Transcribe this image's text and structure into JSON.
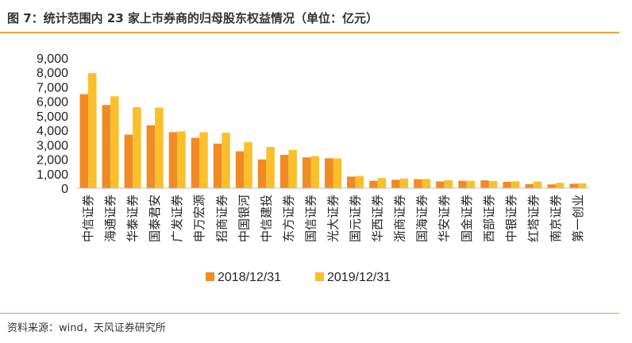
{
  "header": {
    "title": "图 7：统计范围内 23 家上市券商的归母股东权益情况（单位：亿元）"
  },
  "footer": {
    "source": "资料来源：wind，天风证券研究所"
  },
  "chart_data": {
    "type": "bar",
    "title": "图 7：统计范围内 23 家上市券商的归母股东权益情况（单位：亿元）",
    "xlabel": "",
    "ylabel": "",
    "ylim": [
      0,
      9000
    ],
    "yticks": [
      0,
      1000,
      2000,
      3000,
      4000,
      5000,
      6000,
      7000,
      8000,
      9000
    ],
    "ytick_labels": [
      "0",
      "1,000",
      "2,000",
      "3,000",
      "4,000",
      "5,000",
      "6,000",
      "7,000",
      "8,000",
      "9,000"
    ],
    "grid": false,
    "legend_position": "bottom",
    "categories": [
      "中信证券",
      "海通证券",
      "华泰证券",
      "国泰君安",
      "广发证券",
      "申万宏源",
      "招商证券",
      "中国银河",
      "中信建投",
      "东方证券",
      "国信证券",
      "光大证券",
      "国元证券",
      "华西证券",
      "浙商证券",
      "国海证券",
      "华安证券",
      "国金证券",
      "西部证券",
      "中银证券",
      "红塔证券",
      "南京证券",
      "第一创业"
    ],
    "series": [
      {
        "name": "2018/12/31",
        "color": "#f08a24",
        "values": [
          6500,
          5750,
          3700,
          4350,
          3870,
          3480,
          3080,
          2550,
          1990,
          2300,
          2130,
          2070,
          800,
          510,
          580,
          620,
          470,
          510,
          540,
          440,
          280,
          260,
          310
        ]
      },
      {
        "name": "2019/12/31",
        "color": "#fbbf2c",
        "values": [
          7950,
          6350,
          5600,
          5570,
          3930,
          3870,
          3830,
          3180,
          2850,
          2640,
          2220,
          2060,
          840,
          700,
          670,
          640,
          550,
          510,
          490,
          470,
          460,
          370,
          340
        ]
      }
    ]
  }
}
